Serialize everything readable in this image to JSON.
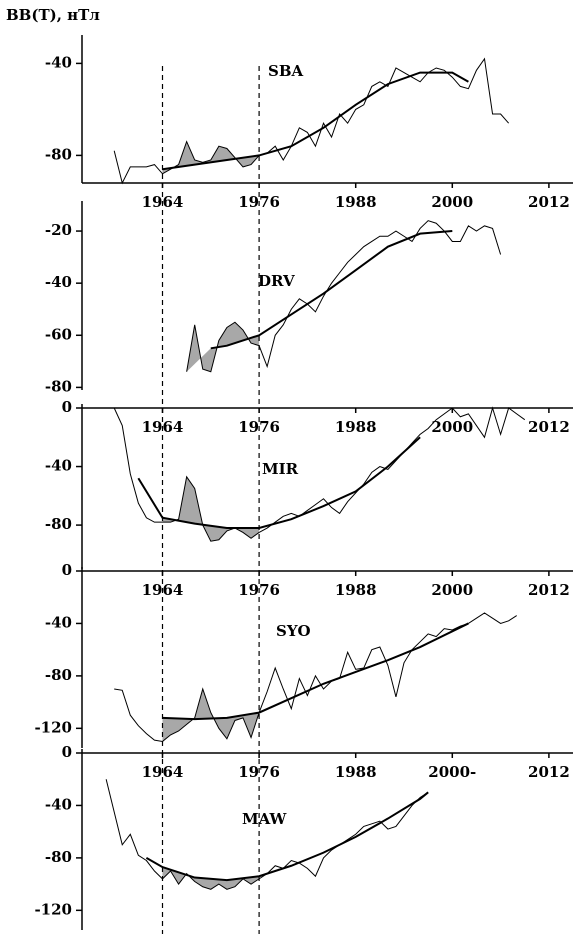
{
  "title": "BB(T), нТл",
  "vlines": [
    1964,
    1976
  ],
  "chart_data": [
    {
      "type": "line",
      "label": "SBA",
      "xaxis": "bottom",
      "xlim": [
        1954,
        2014
      ],
      "xticks": [
        1964,
        1976,
        1988,
        2000,
        2012
      ],
      "ylim": [
        -92,
        -32
      ],
      "yticks": [
        -40,
        -80
      ],
      "series": [
        {
          "color": "#000000",
          "width": 1,
          "x": [
            1958,
            1959,
            1960,
            1962,
            1963,
            1964,
            1965,
            1966,
            1967,
            1968,
            1969,
            1970,
            1971,
            1972,
            1973,
            1974,
            1975,
            1976,
            1977,
            1978,
            1979,
            1980,
            1981,
            1982,
            1983,
            1984,
            1985,
            1986,
            1987,
            1988,
            1989,
            1990,
            1991,
            1992,
            1993,
            1994,
            1995,
            1996,
            1997,
            1998,
            1999,
            2000,
            2001,
            2002,
            2003,
            2004,
            2005,
            2006,
            2007
          ],
          "values": [
            -78,
            -92,
            -85,
            -85,
            -84,
            -88,
            -86,
            -84,
            -74,
            -82,
            -83,
            -82,
            -76,
            -77,
            -81,
            -85,
            -84,
            -80,
            -79,
            -76,
            -82,
            -76,
            -68,
            -70,
            -76,
            -66,
            -72,
            -62,
            -66,
            -60,
            -58,
            -50,
            -48,
            -50,
            -42,
            -44,
            -46,
            -48,
            -44,
            -42,
            -43,
            -46,
            -50,
            -51,
            -43,
            -38,
            -62,
            -62,
            -66
          ]
        },
        {
          "color": "#000000",
          "width": 2,
          "x": [
            1964,
            1968,
            1972,
            1976,
            1980,
            1984,
            1988,
            1992,
            1996,
            2000,
            2002
          ],
          "values": [
            -86,
            -84,
            -82,
            -80,
            -76,
            -68,
            -58,
            -49,
            -44,
            -44,
            -48
          ]
        }
      ]
    },
    {
      "type": "line",
      "label": "DRV",
      "xaxis": "none",
      "xlim": [
        1954,
        2014
      ],
      "ylim": [
        -81,
        -10
      ],
      "yticks": [
        -20,
        -40,
        -60,
        -80
      ],
      "series": [
        {
          "color": "#000000",
          "width": 1,
          "x": [
            1967,
            1968,
            1969,
            1970,
            1971,
            1972,
            1973,
            1974,
            1975,
            1976,
            1977,
            1978,
            1979,
            1980,
            1981,
            1982,
            1983,
            1984,
            1985,
            1986,
            1987,
            1988,
            1989,
            1990,
            1991,
            1992,
            1993,
            1994,
            1995,
            1996,
            1997,
            1998,
            1999,
            2000,
            2001,
            2002,
            2003,
            2004,
            2005,
            2006
          ],
          "values": [
            -74,
            -56,
            -73,
            -74,
            -62,
            -57,
            -55,
            -58,
            -63,
            -64,
            -72,
            -60,
            -56,
            -50,
            -46,
            -48,
            -51,
            -45,
            -40,
            -36,
            -32,
            -29,
            -26,
            -24,
            -22,
            -22,
            -20,
            -22,
            -24,
            -19,
            -16,
            -17,
            -20,
            -24,
            -24,
            -18,
            -20,
            -18,
            -19,
            -29
          ]
        },
        {
          "color": "#000000",
          "width": 2,
          "x": [
            1970,
            1972,
            1976,
            1980,
            1984,
            1988,
            1992,
            1996,
            2000
          ],
          "values": [
            -65,
            -64,
            -60,
            -52,
            -44,
            -35,
            -26,
            -21,
            -20
          ]
        }
      ]
    },
    {
      "type": "line",
      "label": "MIR",
      "xaxis": "top",
      "xlim": [
        1954,
        2014
      ],
      "xticks": [
        1964,
        1976,
        1988,
        2000,
        2012
      ],
      "ylim": [
        -110,
        0
      ],
      "yticks": [
        0,
        -40,
        -80
      ],
      "series": [
        {
          "color": "#000000",
          "width": 1,
          "x": [
            1958,
            1959,
            1960,
            1961,
            1962,
            1963,
            1964,
            1965,
            1966,
            1967,
            1968,
            1969,
            1970,
            1971,
            1972,
            1973,
            1974,
            1975,
            1976,
            1977,
            1978,
            1979,
            1980,
            1981,
            1982,
            1983,
            1984,
            1985,
            1986,
            1987,
            1988,
            1989,
            1990,
            1991,
            1992,
            1993,
            1994,
            1995,
            1996,
            1997,
            1998,
            1999,
            2000,
            2001,
            2002,
            2004,
            2005,
            2006,
            2007,
            2008,
            2009
          ],
          "values": [
            0,
            -12,
            -45,
            -65,
            -75,
            -78,
            -78,
            -78,
            -76,
            -47,
            -55,
            -80,
            -91,
            -90,
            -84,
            -82,
            -85,
            -89,
            -85,
            -82,
            -78,
            -74,
            -72,
            -74,
            -70,
            -66,
            -62,
            -68,
            -72,
            -64,
            -58,
            -52,
            -44,
            -40,
            -42,
            -36,
            -30,
            -24,
            -18,
            -14,
            -8,
            -4,
            0,
            -6,
            -4,
            -20,
            0,
            -18,
            0,
            -4,
            -8
          ]
        },
        {
          "color": "#000000",
          "width": 2,
          "x": [
            1961,
            1964,
            1968,
            1972,
            1976,
            1980,
            1984,
            1988,
            1992,
            1996
          ],
          "values": [
            -48,
            -75,
            -79,
            -82,
            -82,
            -76,
            -67,
            -57,
            -40,
            -20
          ]
        }
      ]
    },
    {
      "type": "line",
      "label": "SYO",
      "xaxis": "top",
      "xlim": [
        1954,
        2014
      ],
      "xticks": [
        1964,
        1976,
        1988,
        2000,
        2012
      ],
      "ylim": [
        -135,
        0
      ],
      "yticks": [
        0,
        -40,
        -80,
        -120
      ],
      "series": [
        {
          "color": "#000000",
          "width": 1,
          "x": [
            1958,
            1959,
            1960,
            1961,
            1962,
            1963,
            1964,
            1965,
            1966,
            1967,
            1968,
            1969,
            1970,
            1971,
            1972,
            1973,
            1974,
            1975,
            1976,
            1977,
            1978,
            1979,
            1980,
            1981,
            1982,
            1983,
            1984,
            1985,
            1986,
            1987,
            1988,
            1989,
            1990,
            1991,
            1992,
            1993,
            1994,
            1995,
            1996,
            1997,
            1998,
            1999,
            2000,
            2001,
            2002,
            2003,
            2004,
            2005,
            2006,
            2007,
            2008
          ],
          "values": [
            -90,
            -91,
            -110,
            -118,
            -124,
            -129,
            -130,
            -125,
            -122,
            -117,
            -112,
            -90,
            -108,
            -120,
            -128,
            -114,
            -112,
            -127,
            -108,
            -92,
            -74,
            -90,
            -105,
            -82,
            -95,
            -80,
            -90,
            -84,
            -82,
            -62,
            -75,
            -74,
            -60,
            -58,
            -72,
            -96,
            -70,
            -60,
            -54,
            -48,
            -50,
            -44,
            -45,
            -42,
            -40,
            -36,
            -32,
            -36,
            -40,
            -38,
            -34
          ]
        },
        {
          "color": "#000000",
          "width": 2,
          "x": [
            1964,
            1968,
            1972,
            1976,
            1980,
            1984,
            1988,
            1992,
            1996,
            2000,
            2002
          ],
          "values": [
            -112,
            -113,
            -112,
            -108,
            -97,
            -86,
            -77,
            -68,
            -58,
            -46,
            -40
          ]
        }
      ]
    },
    {
      "type": "line",
      "label": "MAW",
      "xaxis": "top",
      "xlim": [
        1954,
        2014
      ],
      "xticks": [
        1964,
        1976,
        1988,
        {
          "value": 2000,
          "label": "2000-"
        },
        2012
      ],
      "ylim": [
        -135,
        0
      ],
      "yticks": [
        0,
        -40,
        -80,
        -120
      ],
      "series": [
        {
          "color": "#000000",
          "width": 1,
          "x": [
            1957,
            1958,
            1959,
            1960,
            1961,
            1962,
            1963,
            1964,
            1965,
            1966,
            1967,
            1968,
            1969,
            1970,
            1971,
            1972,
            1973,
            1974,
            1975,
            1976,
            1977,
            1978,
            1979,
            1980,
            1981,
            1982,
            1983,
            1984,
            1985,
            1986,
            1987,
            1988,
            1989,
            1990,
            1991,
            1992,
            1993,
            1994,
            1995,
            1996,
            1997
          ],
          "values": [
            -20,
            -45,
            -70,
            -62,
            -78,
            -82,
            -90,
            -96,
            -90,
            -100,
            -92,
            -98,
            -102,
            -104,
            -100,
            -104,
            -102,
            -96,
            -100,
            -96,
            -92,
            -86,
            -88,
            -82,
            -84,
            -88,
            -94,
            -80,
            -74,
            -70,
            -66,
            -62,
            -56,
            -54,
            -52,
            -58,
            -56,
            -48,
            -40,
            -34,
            -30
          ]
        },
        {
          "color": "#000000",
          "width": 2,
          "x": [
            1962,
            1964,
            1968,
            1972,
            1976,
            1980,
            1984,
            1988,
            1992,
            1996,
            1997
          ],
          "values": [
            -80,
            -87,
            -95,
            -97,
            -94,
            -86,
            -76,
            -64,
            -50,
            -35,
            -30
          ]
        }
      ]
    }
  ]
}
